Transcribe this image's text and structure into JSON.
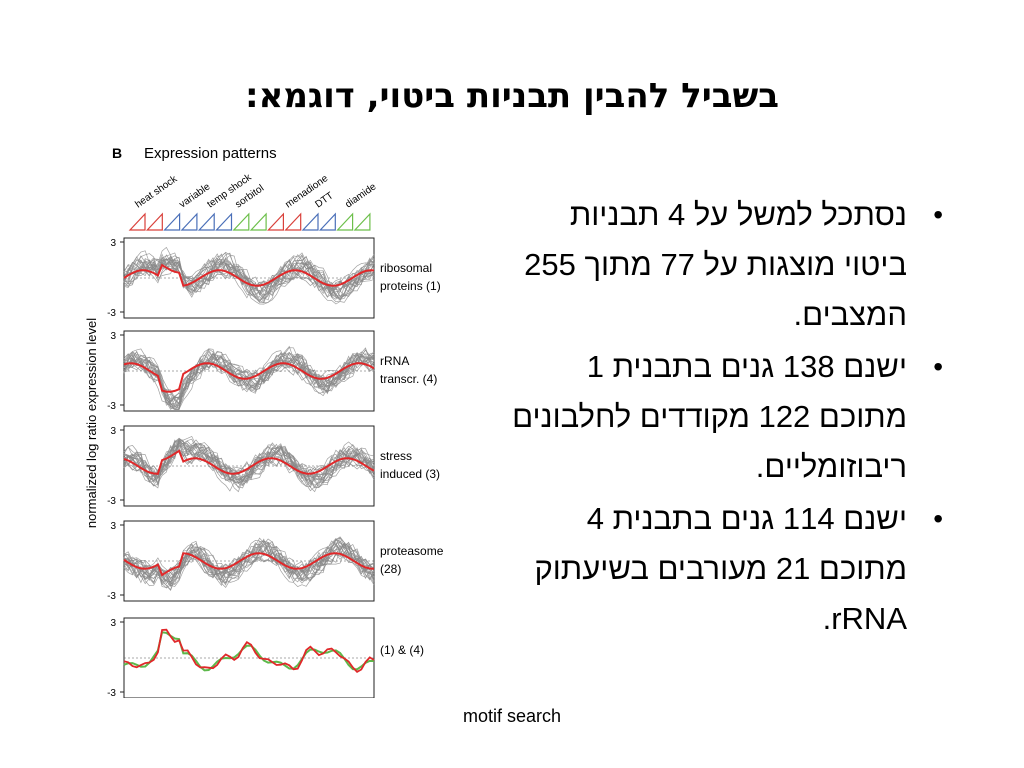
{
  "slide": {
    "title": "בשביל להבין תבניות ביטוי, דוגמא:",
    "bullets": [
      "נסתכל למשל על 4 תבניות ביטוי מוצגות על 77 מתוך 255 המצבים.",
      "ישנם 138 גנים בתבנית 1 מתוכם 122 מקודדים לחלבונים ריבוזומליים.",
      "ישנם 114 גנים בתבנית 4 מתוכם 21 מעורבים בשיעתוק rRNA."
    ],
    "footer": "motif search"
  },
  "figure": {
    "panel_letter": "B",
    "heading": "Expression patterns",
    "conditions": [
      "heat shock",
      "variable",
      "temp shock",
      "sorbitol",
      "menadione",
      "DTT",
      "diamide"
    ],
    "y_axis_label": "normalized log ratio expression level",
    "tick_top": "3",
    "tick_bottom": "-3",
    "panels": [
      {
        "label_line1": "ribosomal",
        "label_line2": "proteins (1)"
      },
      {
        "label_line1": "rRNA",
        "label_line2": "transcr. (4)"
      },
      {
        "label_line1": "stress",
        "label_line2": "induced (3)"
      },
      {
        "label_line1": "proteasome",
        "label_line2": "(28)"
      },
      {
        "label_line1": "(1) & (4)",
        "label_line2": ""
      }
    ],
    "colors": {
      "mean_line": "#e0282a",
      "gene_lines": "#8a8a8a",
      "overlay_green": "#5cb84a",
      "tri_red": "#d9403a",
      "tri_blue": "#4a6fb8",
      "tri_green": "#6cbf4a"
    }
  }
}
